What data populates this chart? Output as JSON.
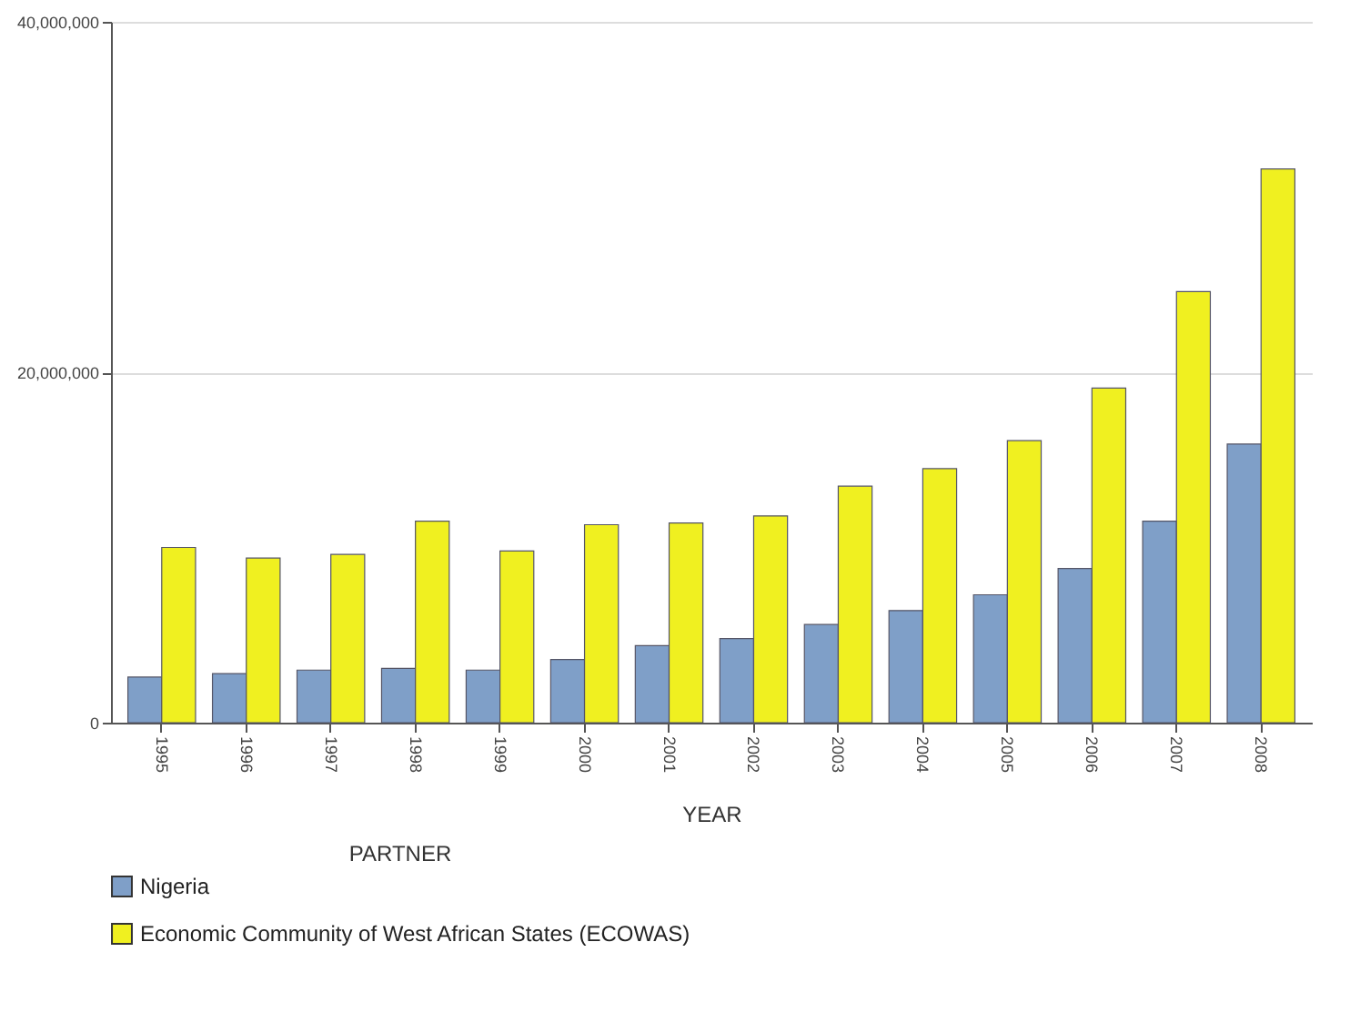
{
  "chart_data": {
    "type": "bar",
    "xlabel": "YEAR",
    "legend_title": "PARTNER",
    "categories": [
      "1995",
      "1996",
      "1997",
      "1998",
      "1999",
      "2000",
      "2001",
      "2002",
      "2003",
      "2004",
      "2005",
      "2006",
      "2007",
      "2008"
    ],
    "series": [
      {
        "name": "Nigeria",
        "color": "#7f9fc8",
        "values": [
          2600000,
          2800000,
          3000000,
          3100000,
          3000000,
          3600000,
          4400000,
          4800000,
          5600000,
          6400000,
          7300000,
          8800000,
          11500000,
          15900000
        ]
      },
      {
        "name": "Economic Community of West African States (ECOWAS)",
        "color": "#f0f020",
        "values": [
          10000000,
          9400000,
          9600000,
          11500000,
          9800000,
          11300000,
          11400000,
          11800000,
          13500000,
          14500000,
          16100000,
          19100000,
          24600000,
          31600000
        ]
      }
    ],
    "ylim": [
      0,
      40000000
    ],
    "yticks": [
      0,
      {
        "value": 20000000,
        "label": "20,000,000"
      },
      {
        "value": 40000000,
        "label": "40,000,000"
      }
    ],
    "grid": "y",
    "legend": "bottom"
  }
}
